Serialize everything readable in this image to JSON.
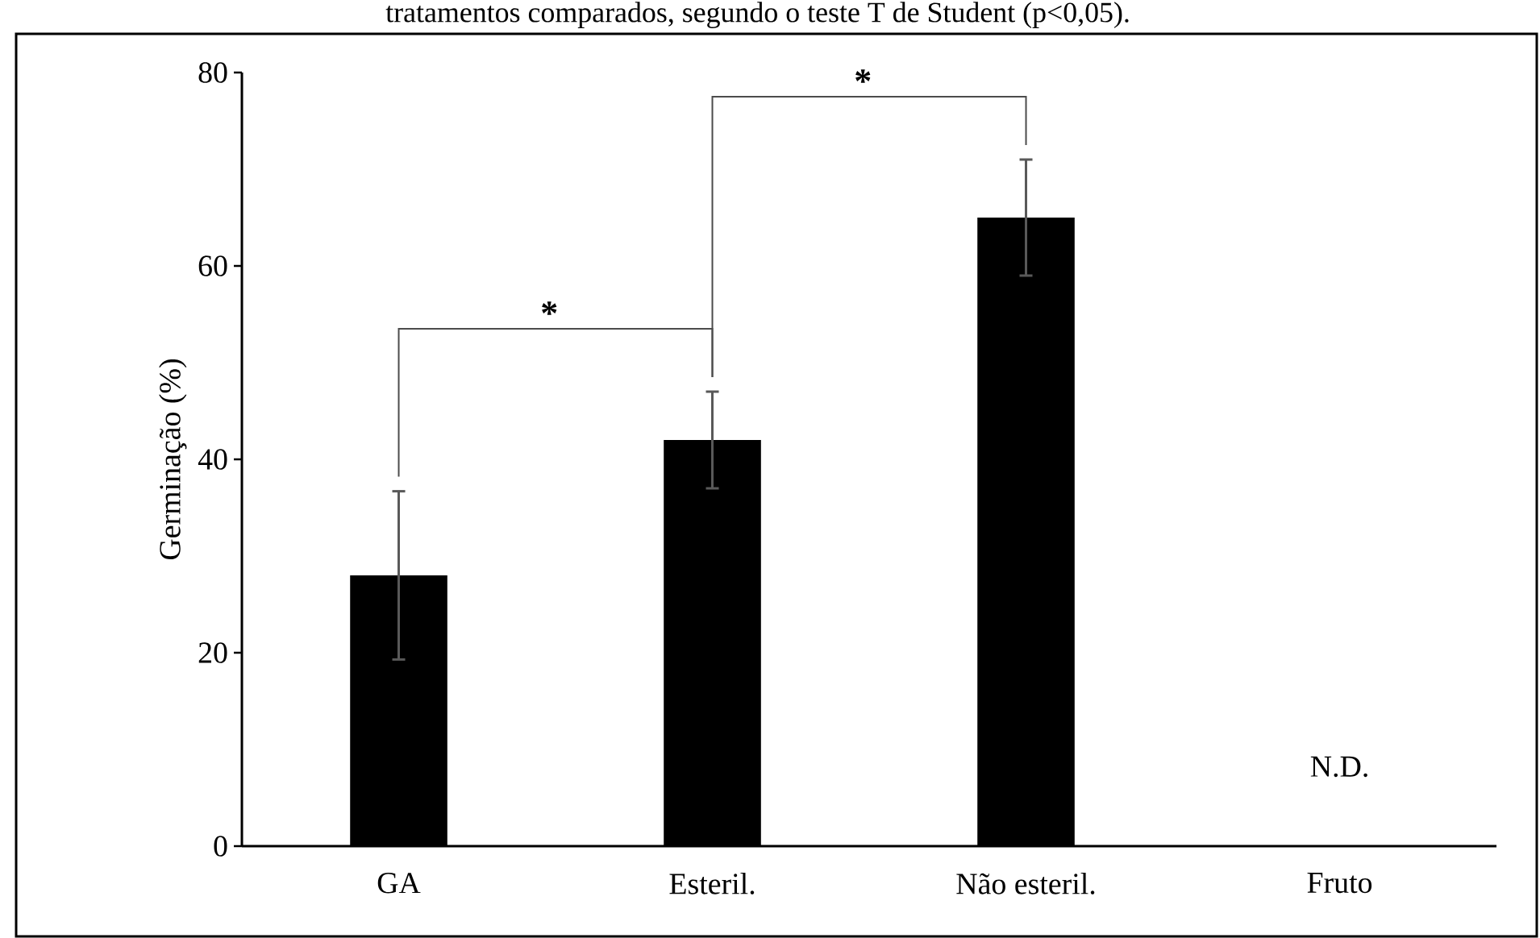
{
  "chart_data": {
    "type": "bar",
    "categories": [
      "GA",
      "Esteril.",
      "Não esteril.",
      "Fruto"
    ],
    "values": [
      28,
      42,
      65,
      null
    ],
    "errors": [
      8.7,
      5,
      6,
      null
    ],
    "color": "#000000",
    "ylabel": "Germinação (%)",
    "ylim": [
      0,
      80
    ],
    "yticks": [
      0,
      20,
      40,
      60,
      80
    ],
    "annotations": [
      "tratamentos comparados, segundo o teste T de Student (p<0,05).",
      "*",
      "*",
      "N.D."
    ]
  }
}
